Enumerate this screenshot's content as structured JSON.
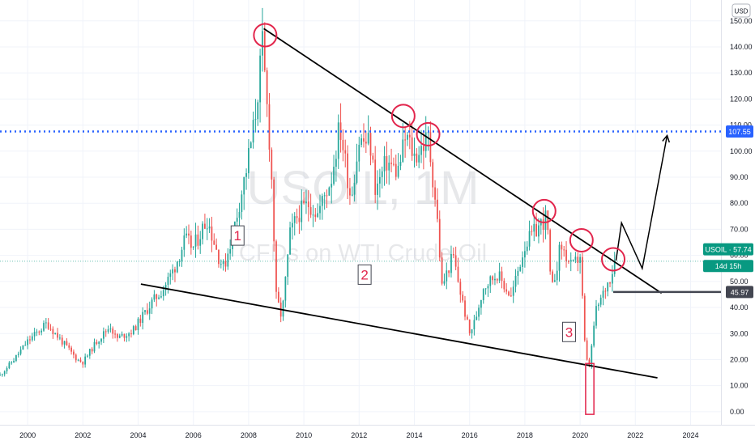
{
  "header": {
    "currency": "USD"
  },
  "watermark": {
    "symbol": "USOIL, 1M",
    "description": "CFDs on WTI Crude Oil"
  },
  "price_labels": {
    "target": "107.55",
    "last": "USOIL · 57.74",
    "countdown": "14d 15h",
    "support": "45.97"
  },
  "wave_labels": [
    "1",
    "2",
    "3"
  ],
  "colors": {
    "up": "#26a69a",
    "down": "#ef5350",
    "annotation": "#e2254c",
    "target_line": "#2962ff",
    "last_price": "#089981",
    "support": "#434651",
    "trendline": "#000000"
  },
  "chart_data": {
    "type": "candlestick",
    "title": "",
    "xlabel": "",
    "ylabel": "",
    "ylim": [
      -5,
      158
    ],
    "xlim": [
      1999.0,
      2025.1
    ],
    "x_ticks": [
      "2000",
      "2002",
      "2004",
      "2006",
      "2008",
      "2010",
      "2012",
      "2014",
      "2016",
      "2018",
      "2020",
      "2022",
      "2024"
    ],
    "y_ticks": [
      "0.00",
      "10.00",
      "20.00",
      "30.00",
      "40.00",
      "50.00",
      "60.00",
      "70.00",
      "80.00",
      "90.00",
      "100.00",
      "110.00",
      "120.00",
      "130.00",
      "140.00",
      "150.00"
    ],
    "price_path": [
      [
        1999.0,
        14
      ],
      [
        1999.5,
        20
      ],
      [
        2000.0,
        27
      ],
      [
        2000.7,
        34
      ],
      [
        2001.0,
        30
      ],
      [
        2001.8,
        20
      ],
      [
        2002.0,
        19
      ],
      [
        2002.5,
        27
      ],
      [
        2003.0,
        33
      ],
      [
        2003.2,
        28
      ],
      [
        2003.8,
        31
      ],
      [
        2004.5,
        42
      ],
      [
        2004.9,
        47
      ],
      [
        2005.3,
        55
      ],
      [
        2005.7,
        66
      ],
      [
        2006.0,
        63
      ],
      [
        2006.5,
        74
      ],
      [
        2006.9,
        60
      ],
      [
        2007.1,
        55
      ],
      [
        2007.5,
        72
      ],
      [
        2007.9,
        92
      ],
      [
        2008.2,
        110
      ],
      [
        2008.5,
        140
      ],
      [
        2008.8,
        98
      ],
      [
        2009.0,
        44
      ],
      [
        2009.2,
        36
      ],
      [
        2009.5,
        68
      ],
      [
        2009.8,
        76
      ],
      [
        2010.2,
        80
      ],
      [
        2010.5,
        76
      ],
      [
        2011.0,
        90
      ],
      [
        2011.3,
        110
      ],
      [
        2011.7,
        82
      ],
      [
        2012.0,
        104
      ],
      [
        2012.4,
        103
      ],
      [
        2012.6,
        85
      ],
      [
        2013.0,
        96
      ],
      [
        2013.4,
        92
      ],
      [
        2013.7,
        106
      ],
      [
        2014.0,
        98
      ],
      [
        2014.5,
        105
      ],
      [
        2014.8,
        78
      ],
      [
        2015.0,
        48
      ],
      [
        2015.4,
        60
      ],
      [
        2015.7,
        44
      ],
      [
        2016.0,
        30
      ],
      [
        2016.2,
        35
      ],
      [
        2016.5,
        48
      ],
      [
        2017.0,
        53
      ],
      [
        2017.5,
        44
      ],
      [
        2018.0,
        64
      ],
      [
        2018.5,
        71
      ],
      [
        2018.8,
        75
      ],
      [
        2018.95,
        45
      ],
      [
        2019.3,
        64
      ],
      [
        2019.7,
        55
      ],
      [
        2020.0,
        60
      ],
      [
        2020.2,
        20
      ],
      [
        2020.35,
        18
      ],
      [
        2020.55,
        38
      ],
      [
        2020.9,
        47
      ],
      [
        2021.1,
        52
      ],
      [
        2021.25,
        57.74
      ]
    ],
    "annotations": {
      "target_level": 107.55,
      "support_level": 45.97,
      "last_price": 57.74,
      "upper_trendline": [
        [
          2008.55,
          147
        ],
        [
          2022.95,
          45.5
        ]
      ],
      "lower_trendline": [
        [
          2004.1,
          49
        ],
        [
          2022.8,
          13
        ]
      ],
      "support_line": [
        [
          2021.2,
          45.97
        ],
        [
          2025.1,
          45.97
        ]
      ],
      "projection": [
        [
          2021.3,
          58
        ],
        [
          2021.5,
          72.5
        ],
        [
          2022.25,
          55
        ],
        [
          2023.15,
          106
        ]
      ],
      "circles": [
        [
          2008.6,
          144.5
        ],
        [
          2013.6,
          113.5
        ],
        [
          2014.5,
          106.5
        ],
        [
          2018.7,
          77
        ],
        [
          2020.05,
          65.8
        ],
        [
          2021.2,
          58.5
        ]
      ],
      "rectangle": [
        [
          2020.2,
          -1
        ],
        [
          2020.5,
          18.5
        ]
      ],
      "wave_positions": [
        [
          2007.6,
          67
        ],
        [
          2012.2,
          52
        ],
        [
          2019.6,
          30
        ]
      ]
    }
  }
}
